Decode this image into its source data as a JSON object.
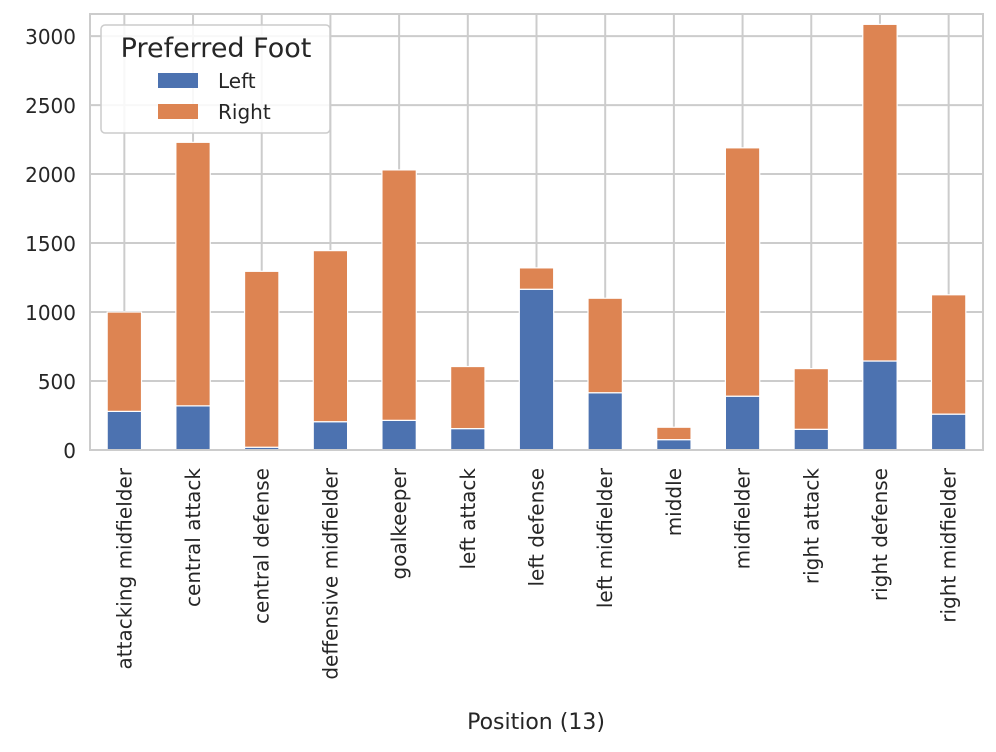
{
  "chart_data": {
    "type": "bar",
    "stacked": true,
    "xlabel": "Position (13)",
    "ylabel": "",
    "ylim": [
      0,
      3160
    ],
    "yticks": [
      0,
      500,
      1000,
      1500,
      2000,
      2500,
      3000
    ],
    "grid": true,
    "legend_position": "top-left",
    "categories": [
      "attacking midfielder",
      "central attack",
      "central defense",
      "deffensive midfielder",
      "goalkeeper",
      "left attack",
      "left defense",
      "left midfielder",
      "middle",
      "midfielder",
      "right attack",
      "right defense",
      "right midfielder"
    ],
    "legend": {
      "title": "Preferred Foot",
      "entries": [
        "Left",
        "Right"
      ]
    },
    "series": [
      {
        "name": "Left",
        "color": "#4c72b0",
        "values": [
          280,
          320,
          20,
          205,
          215,
          155,
          1165,
          415,
          75,
          390,
          150,
          645,
          260
        ]
      },
      {
        "name": "Right",
        "color": "#dd8452",
        "values": [
          720,
          1910,
          1275,
          1240,
          1815,
          450,
          155,
          685,
          90,
          1800,
          440,
          2440,
          865
        ]
      }
    ]
  }
}
